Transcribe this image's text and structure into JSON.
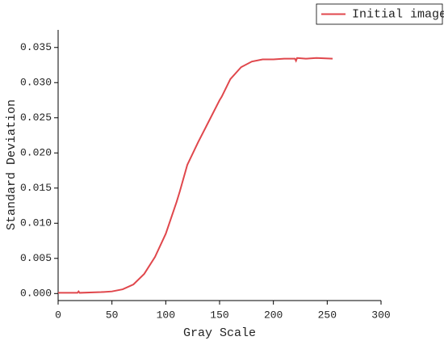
{
  "chart_data": {
    "type": "line",
    "x_label": "Gray Scale",
    "y_label": "Standard Deviation",
    "xlim": [
      0,
      300
    ],
    "xticks": [
      0,
      50,
      100,
      150,
      200,
      250,
      300
    ],
    "ylim": [
      -0.001,
      0.0375
    ],
    "yticks": [
      {
        "value": 0,
        "label": "0.000"
      },
      {
        "value": 0.005,
        "label": "0.005"
      },
      {
        "value": 0.01,
        "label": "0.010"
      },
      {
        "value": 0.015,
        "label": "0.015"
      },
      {
        "value": 0.02,
        "label": "0.020"
      },
      {
        "value": 0.025,
        "label": "0.025"
      },
      {
        "value": 0.03,
        "label": "0.030"
      },
      {
        "value": 0.035,
        "label": "0.035"
      }
    ],
    "legend": "top-right",
    "series": [
      {
        "name": "Initial image",
        "color": "#e0474c",
        "x": [
          0,
          18,
          19,
          20,
          40,
          50,
          60,
          70,
          80,
          90,
          100,
          110,
          112,
          113,
          120,
          130,
          140,
          150,
          152,
          160,
          170,
          180,
          190,
          200,
          210,
          220,
          221,
          222,
          230,
          240,
          255
        ],
        "values": [
          0.0001,
          0.0001,
          0.0003,
          0.0001,
          0.0002,
          0.0003,
          0.0006,
          0.0013,
          0.0028,
          0.0052,
          0.0085,
          0.013,
          0.014,
          0.0145,
          0.0183,
          0.0215,
          0.0245,
          0.0275,
          0.028,
          0.0305,
          0.0322,
          0.033,
          0.0333,
          0.0333,
          0.0334,
          0.0334,
          0.0331,
          0.0335,
          0.0334,
          0.0335,
          0.0334
        ]
      }
    ]
  }
}
